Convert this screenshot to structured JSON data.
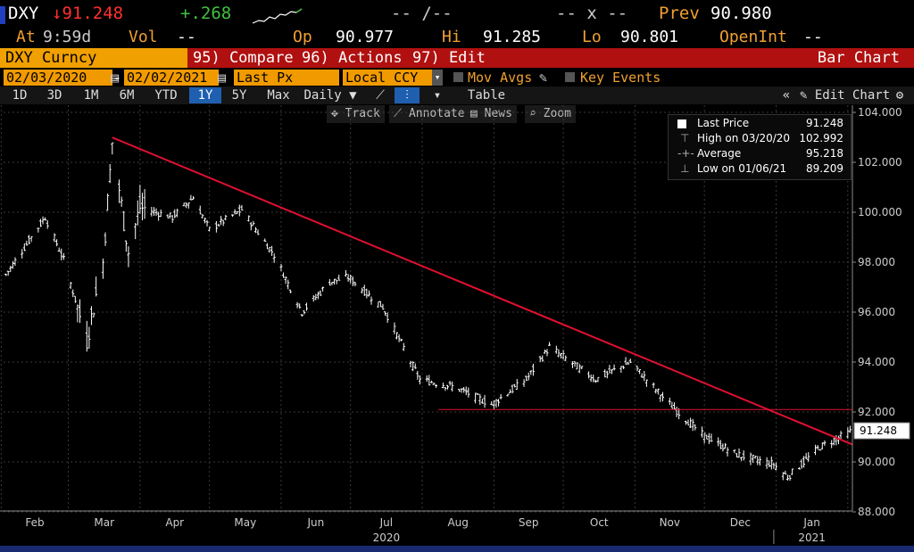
{
  "header": {
    "ticker": "DXY",
    "last": "↓91.248",
    "change": "+.268",
    "bid_ask": "-- /--",
    "size": "-- x --",
    "prev_label": "Prev",
    "prev": "90.980",
    "at_label": "At",
    "time": "9:59d",
    "vol_label": "Vol",
    "vol": "--",
    "op_label": "Op",
    "open": "90.977",
    "hi_label": "Hi",
    "high": "91.285",
    "lo_label": "Lo",
    "low": "90.801",
    "oi_label": "OpenInt",
    "oi": "--"
  },
  "menu": {
    "security": "DXY Curncy",
    "compare": "95) Compare",
    "actions": "96) Actions",
    "edit": "97) Edit",
    "chart_type": "Bar Chart"
  },
  "fields": {
    "start_date": "02/03/2020",
    "dash": "-",
    "end_date": "02/02/2021",
    "price": "Last Px",
    "currency": "Local CCY",
    "mov_avgs": "Mov Avgs",
    "key_events": "Key Events"
  },
  "periods": [
    "1D",
    "3D",
    "1M",
    "6M",
    "YTD",
    "1Y",
    "5Y",
    "Max"
  ],
  "selected_period": "1Y",
  "frequency": "Daily",
  "table_label": "Table",
  "edit_chart": "Edit Chart",
  "tools": {
    "track": "Track",
    "annotate": "Annotate",
    "news": "News",
    "zoom": "Zoom"
  },
  "legend": {
    "last_label": "Last Price",
    "last_value": "91.248",
    "high_label": "High on 03/20/20",
    "high_value": "102.992",
    "avg_label": "Average",
    "avg_value": "95.218",
    "low_label": "Low on 01/06/21",
    "low_value": "89.209"
  },
  "price_tag": "91.248",
  "colors": {
    "trendline": "#e01030",
    "support": "#e01030",
    "bars": "#ffffff",
    "up": "#40c040",
    "down": "#ff3030",
    "accent": "#f0a030"
  },
  "chart_data": {
    "type": "bar",
    "ylim": [
      88,
      104
    ],
    "y_ticks": [
      "88.000",
      "90.000",
      "92.000",
      "94.000",
      "96.000",
      "98.000",
      "100.000",
      "102.000",
      "104.000"
    ],
    "x_ticks": [
      "Feb",
      "Mar",
      "Apr",
      "May",
      "Jun",
      "Jul",
      "Aug",
      "Sep",
      "Oct",
      "Nov",
      "Dec",
      "Jan"
    ],
    "year_labels": [
      "2020",
      "2021"
    ],
    "series": [
      {
        "x": [
          "2020-02-03",
          "2020-02-14",
          "2020-02-20",
          "2020-02-28",
          "2020-03-09",
          "2020-03-16",
          "2020-03-20",
          "2020-03-27",
          "2020-04-01",
          "2020-04-15",
          "2020-04-24",
          "2020-05-01",
          "2020-05-15",
          "2020-05-29",
          "2020-06-10",
          "2020-06-22",
          "2020-06-30",
          "2020-07-15",
          "2020-07-31",
          "2020-08-15",
          "2020-08-31",
          "2020-09-15",
          "2020-09-25",
          "2020-10-15",
          "2020-10-30",
          "2020-11-15",
          "2020-11-30",
          "2020-12-15",
          "2020-12-31",
          "2021-01-06",
          "2021-01-20",
          "2021-02-02"
        ],
        "values": [
          97.5,
          99.0,
          99.8,
          98.1,
          94.9,
          98.0,
          102.8,
          98.4,
          100.2,
          99.8,
          100.6,
          99.3,
          100.1,
          98.3,
          96.0,
          97.2,
          97.4,
          96.2,
          93.3,
          93.0,
          92.3,
          93.3,
          94.6,
          93.3,
          94.0,
          92.4,
          91.1,
          90.3,
          89.9,
          89.4,
          90.6,
          91.2
        ]
      }
    ],
    "annotations": [
      {
        "type": "trendline",
        "from": {
          "x": "2020-03-20",
          "y": 102.992
        },
        "to": {
          "x": "2021-02-02",
          "y": 90.7
        }
      },
      {
        "type": "hline",
        "y": 92.1,
        "from_x": "2020-08-08",
        "to_x": "2021-02-02"
      }
    ]
  }
}
